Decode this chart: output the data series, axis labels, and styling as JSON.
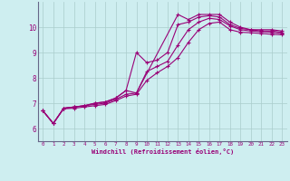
{
  "xlabel": "Windchill (Refroidissement éolien,°C)",
  "bg_color": "#ceeef0",
  "line_color": "#990077",
  "grid_color": "#aacccc",
  "axis_color": "#666688",
  "xlim": [
    -0.5,
    23.5
  ],
  "ylim": [
    5.5,
    11.0
  ],
  "yticks": [
    6,
    7,
    8,
    9,
    10
  ],
  "xticks": [
    0,
    1,
    2,
    3,
    4,
    5,
    6,
    7,
    8,
    9,
    10,
    11,
    12,
    13,
    14,
    15,
    16,
    17,
    18,
    19,
    20,
    21,
    22,
    23
  ],
  "lines": [
    {
      "x": [
        0,
        1,
        2,
        3,
        4,
        5,
        6,
        7,
        8,
        9,
        13,
        14,
        15,
        16,
        17,
        18,
        19,
        20,
        21,
        22,
        23
      ],
      "y": [
        6.7,
        6.2,
        6.8,
        6.85,
        6.9,
        7.0,
        7.05,
        7.2,
        7.5,
        7.4,
        10.5,
        10.3,
        10.5,
        10.5,
        10.5,
        10.2,
        10.0,
        9.9,
        9.9,
        9.9,
        9.85
      ]
    },
    {
      "x": [
        0,
        1,
        2,
        3,
        4,
        5,
        6,
        7,
        8,
        9,
        10,
        11,
        12,
        13,
        14,
        15,
        16,
        17,
        18,
        19,
        20,
        21,
        22,
        23
      ],
      "y": [
        6.7,
        6.2,
        6.8,
        6.85,
        6.9,
        7.0,
        7.05,
        7.2,
        7.5,
        9.0,
        8.6,
        8.7,
        9.0,
        10.1,
        10.2,
        10.4,
        10.45,
        10.4,
        10.1,
        9.95,
        9.9,
        9.85,
        9.85,
        9.8
      ]
    },
    {
      "x": [
        0,
        1,
        2,
        3,
        4,
        5,
        6,
        7,
        8,
        9,
        10,
        11,
        12,
        13,
        14,
        15,
        16,
        17,
        18,
        19,
        20,
        21,
        22,
        23
      ],
      "y": [
        6.7,
        6.2,
        6.8,
        6.85,
        6.9,
        6.95,
        7.0,
        7.15,
        7.35,
        7.4,
        8.25,
        8.45,
        8.65,
        9.3,
        9.9,
        10.2,
        10.35,
        10.3,
        10.05,
        9.9,
        9.85,
        9.82,
        9.8,
        9.75
      ]
    },
    {
      "x": [
        0,
        1,
        2,
        3,
        4,
        5,
        6,
        7,
        8,
        9,
        10,
        11,
        12,
        13,
        14,
        15,
        16,
        17,
        18,
        19,
        20,
        21,
        22,
        23
      ],
      "y": [
        6.7,
        6.2,
        6.78,
        6.8,
        6.85,
        6.9,
        6.95,
        7.1,
        7.28,
        7.35,
        7.9,
        8.2,
        8.45,
        8.8,
        9.4,
        9.9,
        10.15,
        10.2,
        9.9,
        9.8,
        9.78,
        9.75,
        9.72,
        9.7
      ]
    }
  ]
}
